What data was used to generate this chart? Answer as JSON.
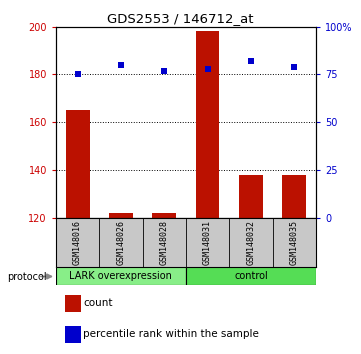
{
  "title": "GDS2553 / 146712_at",
  "samples": [
    "GSM148016",
    "GSM148026",
    "GSM148028",
    "GSM148031",
    "GSM148032",
    "GSM148035"
  ],
  "bar_values": [
    165,
    122,
    122,
    198,
    138,
    138
  ],
  "scatter_values_pct": [
    75,
    80,
    77,
    78,
    82,
    79
  ],
  "ylim_left": [
    120,
    200
  ],
  "ylim_right": [
    0,
    100
  ],
  "yticks_left": [
    120,
    140,
    160,
    180,
    200
  ],
  "yticks_right": [
    0,
    25,
    50,
    75,
    100
  ],
  "ytick_labels_right": [
    "0",
    "25",
    "50",
    "75",
    "100%"
  ],
  "bar_color": "#bb1100",
  "scatter_color": "#0000cc",
  "bar_width": 0.55,
  "group1_label": "LARK overexpression",
  "group2_label": "control",
  "group1_color": "#88ee88",
  "group2_color": "#55dd55",
  "protocol_label": "protocol",
  "legend_count_label": "count",
  "legend_percentile_label": "percentile rank within the sample",
  "left_tick_color": "#cc0000",
  "right_tick_color": "#0000cc"
}
